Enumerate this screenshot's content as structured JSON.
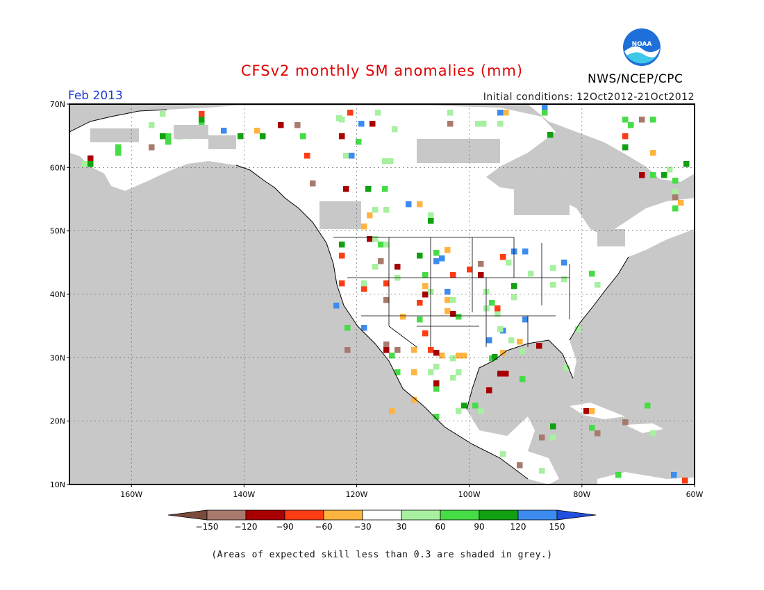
{
  "title": "CFSv2 monthly SM anomalies (mm)",
  "forecast_month": "Feb 2013",
  "initial_conditions": "Initial conditions: 12Oct2012-21Oct2012",
  "agency": "NWS/NCEP/CPC",
  "logo": {
    "text": "NOAA",
    "icon": "noaa-logo-icon",
    "colors": {
      "blue": "#1e6fd9",
      "cyan": "#3fc8e8"
    }
  },
  "footnote": "(Areas of expected skill less than 0.3 are shaded in grey.)",
  "map": {
    "lat_labels": [
      "70N",
      "60N",
      "50N",
      "40N",
      "30N",
      "20N",
      "10N"
    ],
    "lat_values": [
      70,
      60,
      50,
      40,
      30,
      20,
      10
    ],
    "lon_labels": [
      "160W",
      "140W",
      "120W",
      "100W",
      "80W",
      "60W"
    ],
    "lon_values": [
      -160,
      -140,
      -120,
      -100,
      -80,
      -60
    ],
    "lon_range": [
      -171,
      -60
    ],
    "lat_range": [
      10,
      70
    ],
    "low_skill_color": "#c8c8c8",
    "land_color": "#ffffff"
  },
  "colorbar": {
    "labels": [
      "-150",
      "-120",
      "-90",
      "-60",
      "-30",
      "30",
      "60",
      "90",
      "120",
      "150"
    ],
    "colors": [
      "#7a4a3a",
      "#a87a6e",
      "#a80000",
      "#ff3c14",
      "#ffb440",
      "#ffffff",
      "#a6f0a0",
      "#46dc46",
      "#10a010",
      "#3c8cf0",
      "#2050e0"
    ]
  }
}
